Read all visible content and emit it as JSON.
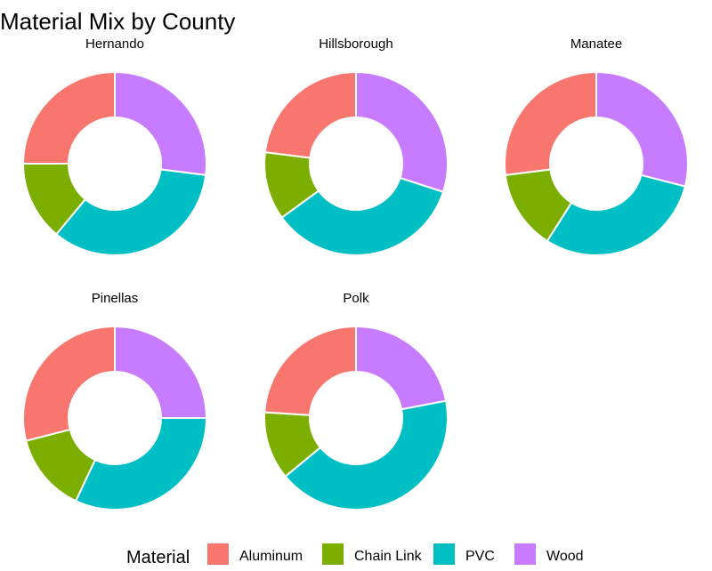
{
  "chart_data": {
    "type": "pie",
    "subtype": "donut",
    "title": "Material Mix by County",
    "legend": {
      "title": "Material",
      "placement": "bottom",
      "entries": [
        "Aluminum",
        "Chain Link",
        "PVC",
        "Wood"
      ]
    },
    "colors": {
      "Aluminum": "#F8766D",
      "Chain Link": "#7CAE00",
      "PVC": "#00BFC4",
      "Wood": "#C77CFF"
    },
    "unit": "percent (estimated)",
    "facets": [
      {
        "name": "Hernando",
        "values": {
          "Wood": 27,
          "PVC": 34,
          "Chain Link": 14,
          "Aluminum": 25
        }
      },
      {
        "name": "Hillsborough",
        "values": {
          "Wood": 30,
          "PVC": 35,
          "Chain Link": 12,
          "Aluminum": 23
        }
      },
      {
        "name": "Manatee",
        "values": {
          "Wood": 29,
          "PVC": 30,
          "Chain Link": 14,
          "Aluminum": 27
        }
      },
      {
        "name": "Pinellas",
        "values": {
          "Wood": 25,
          "PVC": 32,
          "Chain Link": 14,
          "Aluminum": 29
        }
      },
      {
        "name": "Polk",
        "values": {
          "Wood": 22,
          "PVC": 42,
          "Chain Link": 12,
          "Aluminum": 24
        }
      }
    ]
  }
}
